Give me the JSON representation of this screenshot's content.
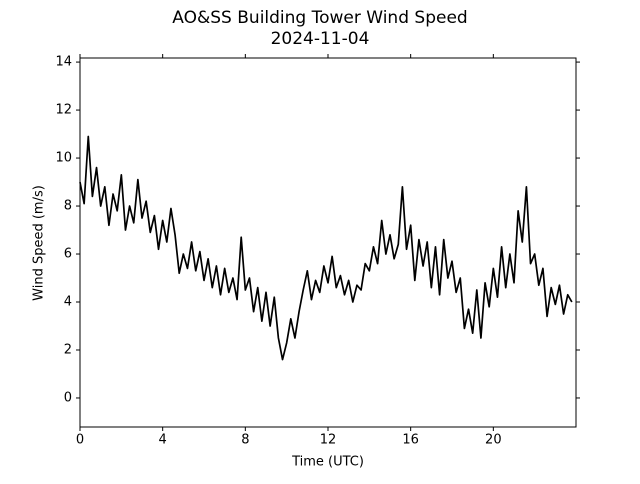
{
  "chart_data": {
    "type": "line",
    "title": "AO&SS Building Tower Wind Speed",
    "subtitle": "2024-11-04",
    "x_label": "Time (UTC)",
    "y_label": "Wind Speed (m/s)",
    "xlim": [
      0,
      24
    ],
    "xticks": [
      0,
      4,
      8,
      12,
      16,
      20
    ],
    "ylim": [
      -1.21,
      14.17
    ],
    "yticks": [
      0,
      2,
      4,
      6,
      8,
      10,
      12,
      14
    ],
    "grid": false,
    "x": [
      0,
      0.2,
      0.4,
      0.6,
      0.8,
      1.0,
      1.2,
      1.4,
      1.6,
      1.8,
      2.0,
      2.2,
      2.4,
      2.6,
      2.8,
      3.0,
      3.2,
      3.4,
      3.6,
      3.8,
      4.0,
      4.2,
      4.4,
      4.6,
      4.8,
      5.0,
      5.2,
      5.4,
      5.6,
      5.8,
      6.0,
      6.2,
      6.4,
      6.6,
      6.8,
      7.0,
      7.2,
      7.4,
      7.6,
      7.8,
      8.0,
      8.2,
      8.4,
      8.6,
      8.8,
      9.0,
      9.2,
      9.4,
      9.6,
      9.8,
      10.0,
      10.2,
      10.4,
      10.6,
      10.8,
      11.0,
      11.2,
      11.4,
      11.6,
      11.8,
      12.0,
      12.2,
      12.4,
      12.6,
      12.8,
      13.0,
      13.2,
      13.4,
      13.6,
      13.8,
      14.0,
      14.2,
      14.4,
      14.6,
      14.8,
      15.0,
      15.2,
      15.4,
      15.6,
      15.8,
      16.0,
      16.2,
      16.4,
      16.6,
      16.8,
      17.0,
      17.2,
      17.4,
      17.6,
      17.8,
      18.0,
      18.2,
      18.4,
      18.6,
      18.8,
      19.0,
      19.2,
      19.4,
      19.6,
      19.8,
      20.0,
      20.2,
      20.4,
      20.6,
      20.8,
      21.0,
      21.2,
      21.4,
      21.6,
      21.8,
      22.0,
      22.2,
      22.4,
      22.6,
      22.8,
      23.0,
      23.2,
      23.4,
      23.6,
      23.8
    ],
    "series": [
      {
        "color": "#000000",
        "values": [
          9.0,
          8.1,
          10.9,
          8.4,
          9.6,
          8.0,
          8.8,
          7.2,
          8.5,
          7.8,
          9.3,
          7.0,
          8.0,
          7.3,
          9.1,
          7.5,
          8.2,
          6.9,
          7.6,
          6.2,
          7.4,
          6.5,
          7.9,
          6.8,
          5.2,
          6.0,
          5.4,
          6.5,
          5.3,
          6.1,
          4.9,
          5.8,
          4.6,
          5.5,
          4.3,
          5.4,
          4.4,
          5.0,
          4.1,
          6.7,
          4.5,
          5.0,
          3.6,
          4.6,
          3.2,
          4.4,
          3.0,
          4.2,
          2.5,
          1.6,
          2.3,
          3.3,
          2.5,
          3.6,
          4.5,
          5.3,
          4.1,
          4.9,
          4.4,
          5.5,
          4.8,
          5.9,
          4.6,
          5.1,
          4.3,
          4.9,
          4.0,
          4.7,
          4.5,
          5.6,
          5.3,
          6.3,
          5.6,
          7.4,
          6.0,
          6.8,
          5.8,
          6.4,
          8.8,
          6.2,
          7.2,
          4.9,
          6.6,
          5.5,
          6.5,
          4.6,
          6.3,
          4.3,
          6.6,
          5.0,
          5.7,
          4.4,
          5.0,
          2.9,
          3.7,
          2.7,
          4.5,
          2.5,
          4.8,
          3.8,
          5.4,
          4.2,
          6.3,
          4.6,
          6.0,
          4.8,
          7.8,
          6.5,
          8.8,
          5.6,
          6.0,
          4.7,
          5.4,
          3.4,
          4.6,
          3.9,
          4.7,
          3.5,
          4.3,
          4.0
        ]
      }
    ]
  }
}
